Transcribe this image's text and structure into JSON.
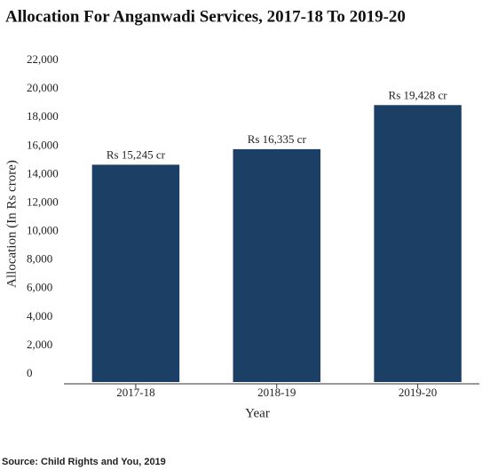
{
  "chart_data": {
    "type": "bar",
    "title": "Allocation For Anganwadi Services, 2017-18 To 2019-20",
    "x_label": "Year",
    "y_label": "Allocation (In Rs crore)",
    "source": "Source: Child Rights and You, 2019",
    "categories": [
      "2017-18",
      "2018-19",
      "2019-20"
    ],
    "values": [
      15245,
      16335,
      19428
    ],
    "value_labels": [
      "Rs 15,245 cr",
      "Rs 16,335 cr",
      "Rs 19,428 cr"
    ],
    "color": "#1c3f66",
    "ylim": [
      0,
      22000
    ],
    "yticks": [
      0,
      {
        "value": 2000,
        "label": "2,000"
      },
      {
        "value": 4000,
        "label": "4,000"
      },
      {
        "value": 6000,
        "label": "6,000"
      },
      {
        "value": 8000,
        "label": "8,000"
      },
      {
        "value": 10000,
        "label": "10,000"
      },
      {
        "value": 12000,
        "label": "12,000"
      },
      {
        "value": 14000,
        "label": "14,000"
      },
      {
        "value": 16000,
        "label": "16,000"
      },
      {
        "value": 18000,
        "label": "18,000"
      },
      {
        "value": 20000,
        "label": "20,000"
      },
      {
        "value": 22000,
        "label": "22,000"
      }
    ],
    "grid": false
  }
}
